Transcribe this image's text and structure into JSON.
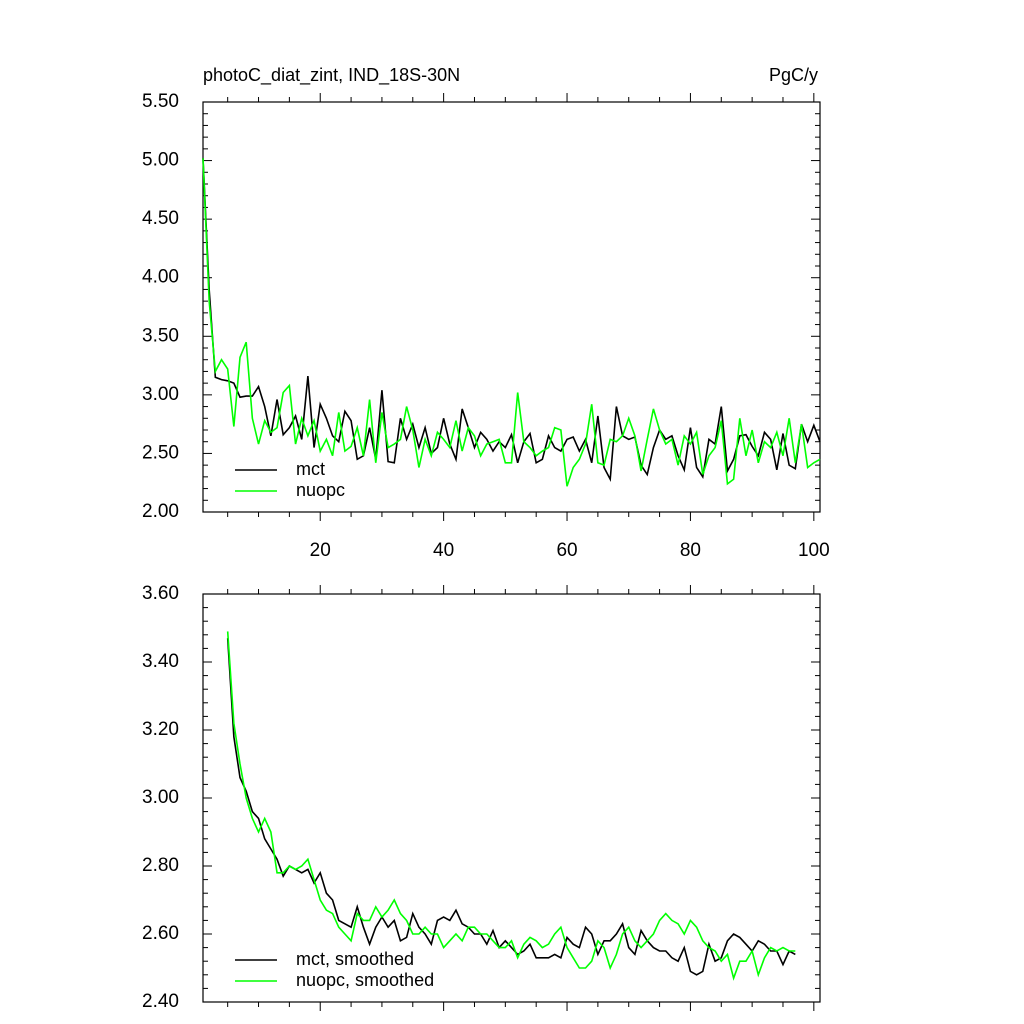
{
  "chart_data": [
    {
      "type": "line",
      "title": "photoC_diat_zint, IND_18S-30N",
      "units": "PgC/y",
      "x": [
        1,
        2,
        3,
        4,
        5,
        6,
        7,
        8,
        9,
        10,
        11,
        12,
        13,
        14,
        15,
        16,
        17,
        18,
        19,
        20,
        21,
        22,
        23,
        24,
        25,
        26,
        27,
        28,
        29,
        30,
        31,
        32,
        33,
        34,
        35,
        36,
        37,
        38,
        39,
        40,
        41,
        42,
        43,
        44,
        45,
        46,
        47,
        48,
        49,
        50,
        51,
        52,
        53,
        54,
        55,
        56,
        57,
        58,
        59,
        60,
        61,
        62,
        63,
        64,
        65,
        66,
        67,
        68,
        69,
        70,
        71,
        72,
        73,
        74,
        75,
        76,
        77,
        78,
        79,
        80,
        81,
        82,
        83,
        84,
        85,
        86,
        87,
        88,
        89,
        90,
        91,
        92,
        93,
        94,
        95,
        96,
        97,
        98,
        99,
        100,
        101
      ],
      "series": [
        {
          "name": "mct",
          "color": "#000000",
          "values": [
            5.02,
            3.9,
            3.15,
            3.13,
            3.12,
            3.1,
            2.98,
            2.99,
            2.99,
            3.07,
            2.9,
            2.65,
            2.96,
            2.66,
            2.72,
            2.82,
            2.62,
            3.16,
            2.55,
            2.92,
            2.8,
            2.65,
            2.6,
            2.86,
            2.78,
            2.45,
            2.48,
            2.72,
            2.45,
            3.04,
            2.43,
            2.42,
            2.8,
            2.62,
            2.75,
            2.55,
            2.72,
            2.5,
            2.55,
            2.8,
            2.58,
            2.45,
            2.88,
            2.72,
            2.55,
            2.68,
            2.62,
            2.52,
            2.6,
            2.55,
            2.66,
            2.42,
            2.6,
            2.67,
            2.42,
            2.45,
            2.65,
            2.55,
            2.52,
            2.62,
            2.64,
            2.52,
            2.62,
            2.42,
            2.82,
            2.38,
            2.28,
            2.9,
            2.65,
            2.62,
            2.64,
            2.4,
            2.32,
            2.55,
            2.7,
            2.62,
            2.65,
            2.48,
            2.36,
            2.72,
            2.38,
            2.3,
            2.62,
            2.58,
            2.9,
            2.35,
            2.45,
            2.65,
            2.66,
            2.56,
            2.48,
            2.68,
            2.62,
            2.36,
            2.67,
            2.4,
            2.37,
            2.75,
            2.6,
            2.74,
            2.6
          ]
        },
        {
          "name": "nuopc",
          "color": "#00ff00",
          "values": [
            5.02,
            3.8,
            3.2,
            3.3,
            3.22,
            2.73,
            3.32,
            3.45,
            2.8,
            2.58,
            2.78,
            2.68,
            2.72,
            3.02,
            3.08,
            2.58,
            2.8,
            2.65,
            2.78,
            2.52,
            2.62,
            2.48,
            2.85,
            2.52,
            2.56,
            2.72,
            2.48,
            2.96,
            2.42,
            2.85,
            2.55,
            2.58,
            2.62,
            2.9,
            2.7,
            2.38,
            2.62,
            2.48,
            2.68,
            2.62,
            2.55,
            2.78,
            2.52,
            2.72,
            2.65,
            2.48,
            2.58,
            2.6,
            2.62,
            2.42,
            2.42,
            3.02,
            2.6,
            2.55,
            2.48,
            2.52,
            2.55,
            2.72,
            2.7,
            2.22,
            2.38,
            2.45,
            2.58,
            2.92,
            2.42,
            2.4,
            2.62,
            2.6,
            2.65,
            2.8,
            2.65,
            2.35,
            2.62,
            2.88,
            2.7,
            2.58,
            2.62,
            2.4,
            2.65,
            2.58,
            2.68,
            2.32,
            2.48,
            2.55,
            2.78,
            2.24,
            2.28,
            2.8,
            2.48,
            2.7,
            2.42,
            2.6,
            2.55,
            2.68,
            2.48,
            2.8,
            2.42,
            2.75,
            2.38,
            2.42,
            2.45
          ]
        }
      ],
      "xlim": [
        1,
        101
      ],
      "xticks": [
        20,
        40,
        60,
        80,
        100
      ],
      "show_xtick_labels": true,
      "ylim": [
        2,
        5.5
      ],
      "yticks": [
        {
          "value": 2,
          "label": "2.00"
        },
        {
          "value": 2.5,
          "label": "2.50"
        },
        {
          "value": 3,
          "label": "3.00"
        },
        {
          "value": 3.5,
          "label": "3.50"
        },
        {
          "value": 4,
          "label": "4.00"
        },
        {
          "value": 4.5,
          "label": "4.50"
        },
        {
          "value": 5,
          "label": "5.00"
        },
        {
          "value": 5.5,
          "label": "5.50"
        }
      ],
      "legend": "lower left"
    },
    {
      "type": "line",
      "x": [
        5,
        6,
        7,
        8,
        9,
        10,
        11,
        12,
        13,
        14,
        15,
        16,
        17,
        18,
        19,
        20,
        21,
        22,
        23,
        24,
        25,
        26,
        27,
        28,
        29,
        30,
        31,
        32,
        33,
        34,
        35,
        36,
        37,
        38,
        39,
        40,
        41,
        42,
        43,
        44,
        45,
        46,
        47,
        48,
        49,
        50,
        51,
        52,
        53,
        54,
        55,
        56,
        57,
        58,
        59,
        60,
        61,
        62,
        63,
        64,
        65,
        66,
        67,
        68,
        69,
        70,
        71,
        72,
        73,
        74,
        75,
        76,
        77,
        78,
        79,
        80,
        81,
        82,
        83,
        84,
        85,
        86,
        87,
        88,
        89,
        90,
        91,
        92,
        93,
        94,
        95,
        96,
        97
      ],
      "series": [
        {
          "name": "mct, smoothed",
          "color": "#000000",
          "values": [
            3.47,
            3.18,
            3.06,
            3.02,
            2.96,
            2.94,
            2.88,
            2.85,
            2.82,
            2.77,
            2.8,
            2.79,
            2.78,
            2.79,
            2.75,
            2.78,
            2.72,
            2.7,
            2.64,
            2.63,
            2.62,
            2.68,
            2.62,
            2.57,
            2.62,
            2.65,
            2.62,
            2.64,
            2.58,
            2.59,
            2.66,
            2.62,
            2.6,
            2.57,
            2.64,
            2.65,
            2.64,
            2.67,
            2.63,
            2.62,
            2.6,
            2.6,
            2.57,
            2.61,
            2.56,
            2.58,
            2.56,
            2.54,
            2.55,
            2.57,
            2.53,
            2.53,
            2.53,
            2.54,
            2.53,
            2.59,
            2.57,
            2.56,
            2.62,
            2.6,
            2.54,
            2.58,
            2.58,
            2.6,
            2.63,
            2.56,
            2.54,
            2.61,
            2.58,
            2.56,
            2.55,
            2.55,
            2.53,
            2.52,
            2.56,
            2.49,
            2.48,
            2.49,
            2.57,
            2.52,
            2.53,
            2.58,
            2.6,
            2.59,
            2.57,
            2.55,
            2.58,
            2.57,
            2.55,
            2.55,
            2.51,
            2.55,
            2.54
          ]
        },
        {
          "name": "nuopc, smoothed",
          "color": "#00ff00",
          "values": [
            3.49,
            3.22,
            3.1,
            3.0,
            2.94,
            2.9,
            2.94,
            2.9,
            2.78,
            2.78,
            2.8,
            2.79,
            2.8,
            2.82,
            2.76,
            2.7,
            2.67,
            2.66,
            2.62,
            2.6,
            2.58,
            2.66,
            2.64,
            2.64,
            2.68,
            2.65,
            2.67,
            2.7,
            2.66,
            2.64,
            2.6,
            2.6,
            2.62,
            2.6,
            2.6,
            2.56,
            2.58,
            2.6,
            2.58,
            2.62,
            2.62,
            2.6,
            2.6,
            2.58,
            2.56,
            2.56,
            2.58,
            2.53,
            2.57,
            2.59,
            2.58,
            2.56,
            2.57,
            2.6,
            2.62,
            2.56,
            2.53,
            2.5,
            2.5,
            2.52,
            2.58,
            2.56,
            2.5,
            2.54,
            2.6,
            2.62,
            2.58,
            2.56,
            2.58,
            2.6,
            2.64,
            2.66,
            2.64,
            2.63,
            2.6,
            2.64,
            2.62,
            2.58,
            2.56,
            2.55,
            2.52,
            2.54,
            2.47,
            2.52,
            2.52,
            2.55,
            2.48,
            2.53,
            2.56,
            2.55,
            2.56,
            2.55,
            2.55
          ]
        }
      ],
      "xlim": [
        1,
        101
      ],
      "xticks": [
        20,
        40,
        60,
        80,
        100
      ],
      "show_xtick_labels": false,
      "ylim": [
        2.4,
        3.6
      ],
      "yticks": [
        {
          "value": 2.4,
          "label": "2.40"
        },
        {
          "value": 2.6,
          "label": "2.60"
        },
        {
          "value": 2.8,
          "label": "2.80"
        },
        {
          "value": 3.0,
          "label": "3.00"
        },
        {
          "value": 3.2,
          "label": "3.20"
        },
        {
          "value": 3.4,
          "label": "3.40"
        },
        {
          "value": 3.6,
          "label": "3.60"
        }
      ],
      "legend": "lower left"
    }
  ]
}
